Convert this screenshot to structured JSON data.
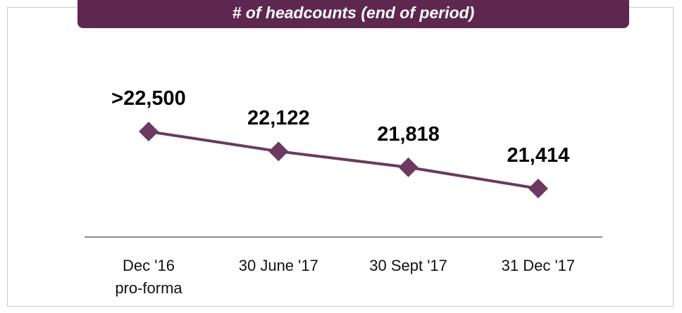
{
  "chart_data": {
    "type": "line",
    "title": "# of headcounts (end of period)",
    "categories": [
      "Dec '16\npro-forma",
      "30 June '17",
      "30 Sept '17",
      "31 Dec '17"
    ],
    "values": [
      22500,
      22122,
      21818,
      21414
    ],
    "value_labels": [
      ">22,500",
      "22,122",
      "21,818",
      "21,414"
    ],
    "color": "#6b3a5e"
  }
}
